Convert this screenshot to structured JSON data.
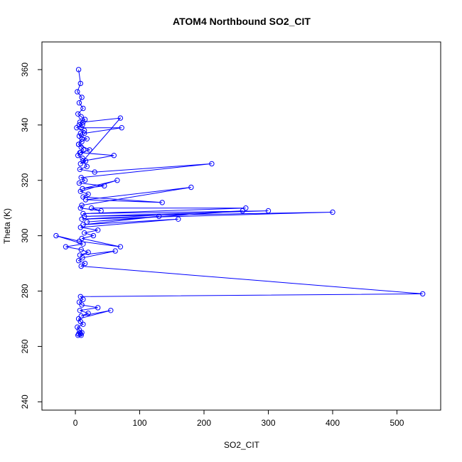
{
  "chart_data": {
    "type": "line",
    "title": "ATOM4 Northbound SO2_CIT",
    "xlabel": "SO2_CIT",
    "ylabel": "Theta (K)",
    "xlim": [
      -52,
      568
    ],
    "ylim": [
      237,
      370
    ],
    "xticks": [
      0,
      100,
      200,
      300,
      400,
      500
    ],
    "yticks": [
      240,
      260,
      280,
      300,
      320,
      340,
      360
    ],
    "grid": false,
    "legend": "none",
    "series": [
      {
        "color": "#0000ff",
        "markers": "open-circle",
        "x": [
          5,
          8,
          3,
          10,
          6,
          12,
          4,
          9,
          15,
          7,
          11,
          2,
          14,
          8,
          6,
          18,
          10,
          5,
          9,
          13,
          7,
          4,
          11,
          16,
          8,
          70,
          12,
          6,
          9,
          72,
          14,
          10,
          5,
          22,
          8,
          60,
          12,
          18,
          7,
          30,
          212,
          9,
          15,
          6,
          45,
          11,
          65,
          8,
          20,
          12,
          135,
          16,
          180,
          10,
          8,
          40,
          25,
          265,
          12,
          300,
          14,
          400,
          10,
          260,
          18,
          130,
          12,
          160,
          8,
          35,
          14,
          28,
          10,
          70,
          6,
          -30,
          12,
          -15,
          9,
          20,
          7,
          62,
          11,
          5,
          15,
          9,
          540,
          8,
          12,
          6,
          10,
          35,
          7,
          20,
          9,
          55,
          5,
          8,
          12,
          3,
          6,
          10,
          8,
          4,
          7,
          9,
          5
        ],
        "y": [
          360,
          355,
          352,
          350,
          348,
          346,
          344,
          343,
          342,
          341,
          340,
          339,
          338,
          337,
          336,
          335,
          334,
          333,
          332,
          331,
          330,
          329,
          328,
          327,
          326,
          342.5,
          341,
          340,
          339,
          339,
          337,
          335,
          333,
          331,
          330,
          329,
          327,
          325,
          324,
          323,
          326,
          321,
          320,
          319,
          318,
          317,
          320,
          316,
          315,
          314,
          312,
          313,
          317.5,
          311,
          310,
          309,
          310,
          310,
          308,
          309,
          307,
          308.5,
          306,
          309,
          305,
          307,
          304,
          306,
          303,
          302,
          301,
          300,
          299,
          296,
          298,
          300,
          297,
          296,
          295,
          294,
          293,
          294.5,
          292,
          291,
          290,
          289,
          279,
          278,
          277,
          276,
          275,
          274,
          273,
          272,
          271,
          273,
          270,
          269,
          268,
          267,
          266,
          265,
          264.5,
          264,
          265,
          264,
          264.5
        ]
      }
    ]
  }
}
